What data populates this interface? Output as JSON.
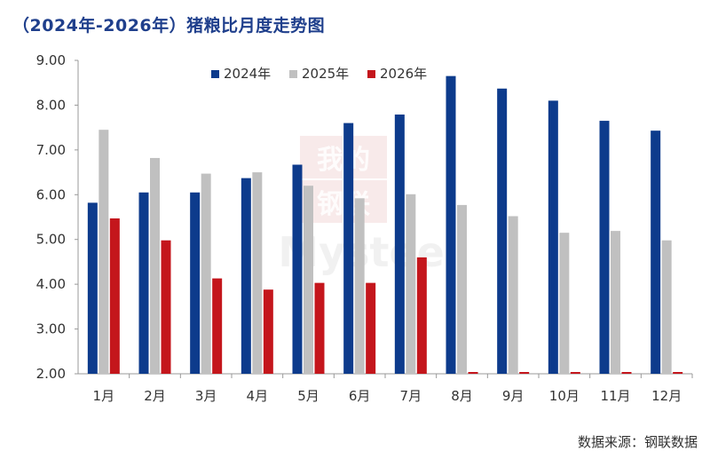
{
  "title": "（2024年-2026年）猪粮比月度走势图",
  "source": "数据来源：钢联数据",
  "watermark": {
    "line1": "我的",
    "line2": "钢联",
    "brand": "Mysteel"
  },
  "colors": {
    "2024年": "#0d3b8c",
    "2025年": "#c0c0c0",
    "2026年": "#c4161c"
  },
  "chart_data": {
    "type": "bar",
    "title": "（2024年-2026年）猪粮比月度走势图",
    "xlabel": "",
    "ylabel": "",
    "categories": [
      "1月",
      "2月",
      "3月",
      "4月",
      "5月",
      "6月",
      "7月",
      "8月",
      "9月",
      "10月",
      "11月",
      "12月"
    ],
    "ylim": [
      2.0,
      9.0
    ],
    "yticks": [
      "2.00",
      "3.00",
      "4.00",
      "5.00",
      "6.00",
      "7.00",
      "8.00",
      "9.00"
    ],
    "legend_position": "top",
    "grid": false,
    "series": [
      {
        "name": "2024年",
        "values": [
          5.82,
          6.05,
          6.05,
          6.37,
          6.67,
          7.6,
          7.79,
          8.65,
          8.37,
          8.1,
          7.65,
          7.43
        ]
      },
      {
        "name": "2025年",
        "values": [
          7.45,
          6.82,
          6.47,
          6.5,
          6.2,
          5.92,
          6.01,
          5.77,
          5.52,
          5.15,
          5.19,
          4.98
        ]
      },
      {
        "name": "2026年",
        "values": [
          5.47,
          4.98,
          4.13,
          3.88,
          4.03,
          4.03,
          4.6,
          null,
          null,
          null,
          null,
          null
        ]
      }
    ]
  }
}
